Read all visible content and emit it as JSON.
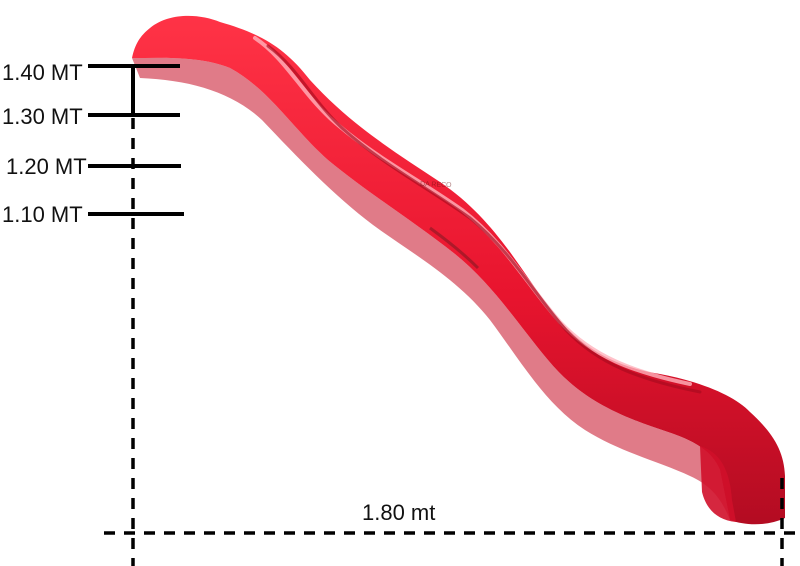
{
  "height_labels": [
    "1.40 MT",
    "1.30 MT",
    "1.20 MT",
    "1.10 MT"
  ],
  "width_label": "1.80 mt",
  "watermark": "DA RECO",
  "colors": {
    "slide_main": "#e8142e",
    "slide_dark": "#b30c22",
    "slide_light": "#ff5a6a",
    "slide_highlight": "#ffd0d6",
    "ink": "#000000"
  }
}
